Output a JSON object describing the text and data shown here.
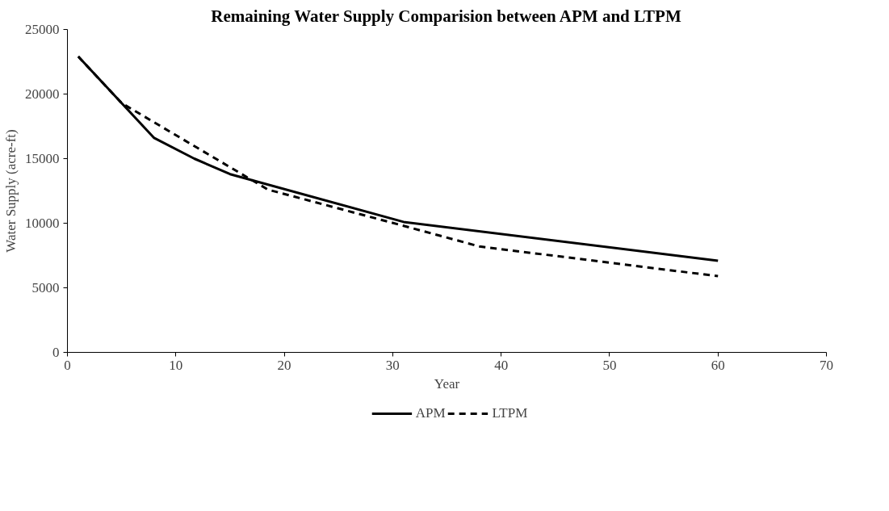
{
  "chart_data": {
    "type": "line",
    "title": "Remaining Water Supply Comparision between APM and LTPM",
    "xlabel": "Year",
    "ylabel": "Water Supply (acre-ft)",
    "xlim": [
      0,
      70
    ],
    "xticks": [
      0,
      10,
      20,
      30,
      40,
      50,
      60,
      70
    ],
    "ylim": [
      0,
      25000
    ],
    "yticks": [
      0,
      5000,
      10000,
      15000,
      20000,
      25000
    ],
    "grid": false,
    "legend": "bottom",
    "marker": "none",
    "series": [
      {
        "name": "APM",
        "color": "#000000",
        "line_style": "solid",
        "x": [
          1,
          8,
          11.7,
          15,
          31,
          60
        ],
        "values": [
          22900,
          16600,
          15000,
          13800,
          10100,
          7100
        ]
      },
      {
        "name": "LTPM",
        "color": "#000000",
        "line_style": "dashed",
        "x": [
          1,
          5,
          18.5,
          31,
          38,
          60
        ],
        "values": [
          22900,
          19300,
          12600,
          9800,
          8200,
          5900
        ]
      }
    ]
  }
}
